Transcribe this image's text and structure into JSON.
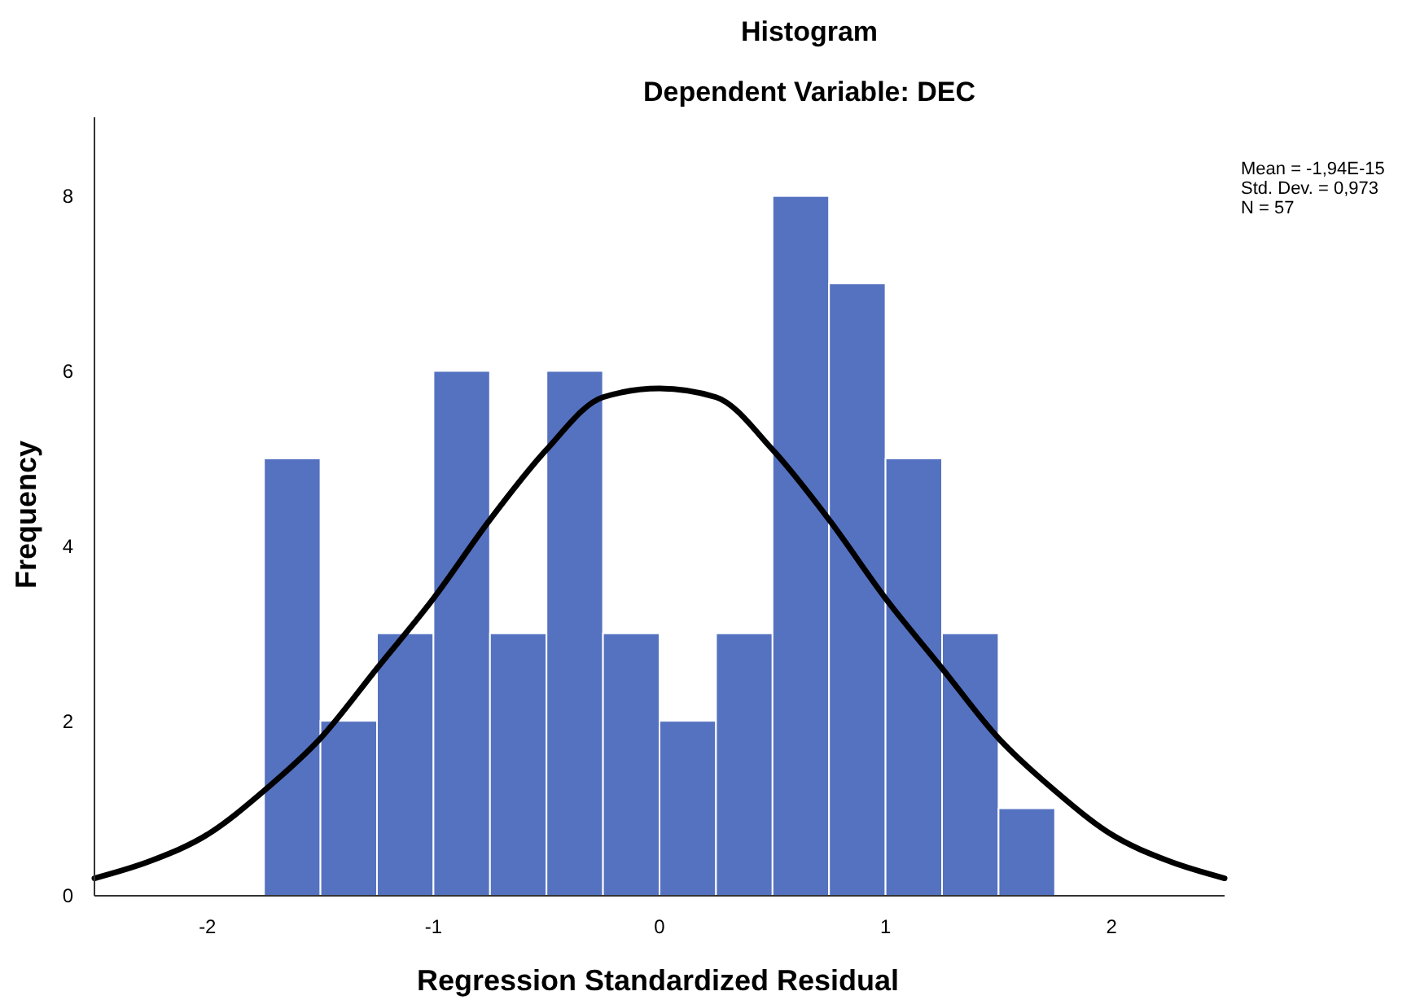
{
  "chart_data": {
    "type": "histogram",
    "title": "Histogram",
    "subtitle": "Dependent Variable: DEC",
    "xlabel": "Regression Standardized Residual",
    "ylabel": "Frequency",
    "bins": [
      -1.75,
      -1.5,
      -1.25,
      -1,
      -0.75,
      -0.5,
      -0.25,
      0,
      0.25,
      0.5,
      0.75,
      1,
      1.25,
      1.5,
      1.75
    ],
    "values": [
      5,
      2,
      3,
      6,
      3,
      6,
      3,
      2,
      3,
      8,
      7,
      5,
      3,
      1
    ],
    "color": "#5572c0",
    "series": [
      {
        "type": "line",
        "color": "#000000",
        "x": [
          -2.5,
          -2.25,
          -2,
          -1.75,
          -1.5,
          -1.25,
          -1,
          -0.75,
          -0.5,
          -0.25,
          0,
          0.25,
          0.5,
          0.75,
          1,
          1.25,
          1.5,
          1.75,
          2,
          2.25,
          2.5
        ],
        "values": [
          0.2,
          0.4,
          0.7,
          1.2,
          1.8,
          2.6,
          3.4,
          4.3,
          5.1,
          5.7,
          5.8,
          5.7,
          5.1,
          4.3,
          3.4,
          2.6,
          1.8,
          1.2,
          0.7,
          0.4,
          0.2
        ]
      }
    ],
    "marker": "none",
    "line_style": "solid",
    "xlim": [
      -2.5,
      2.5
    ],
    "xticks": [
      -2,
      -1,
      0,
      1,
      2
    ],
    "ylim": [
      0,
      8.9
    ],
    "yticks": [
      0,
      2,
      4,
      6,
      8
    ],
    "grid": false,
    "annotations": [
      "Mean = -1,94E-15",
      "Std. Dev. = 0,973",
      "N = 57"
    ]
  }
}
